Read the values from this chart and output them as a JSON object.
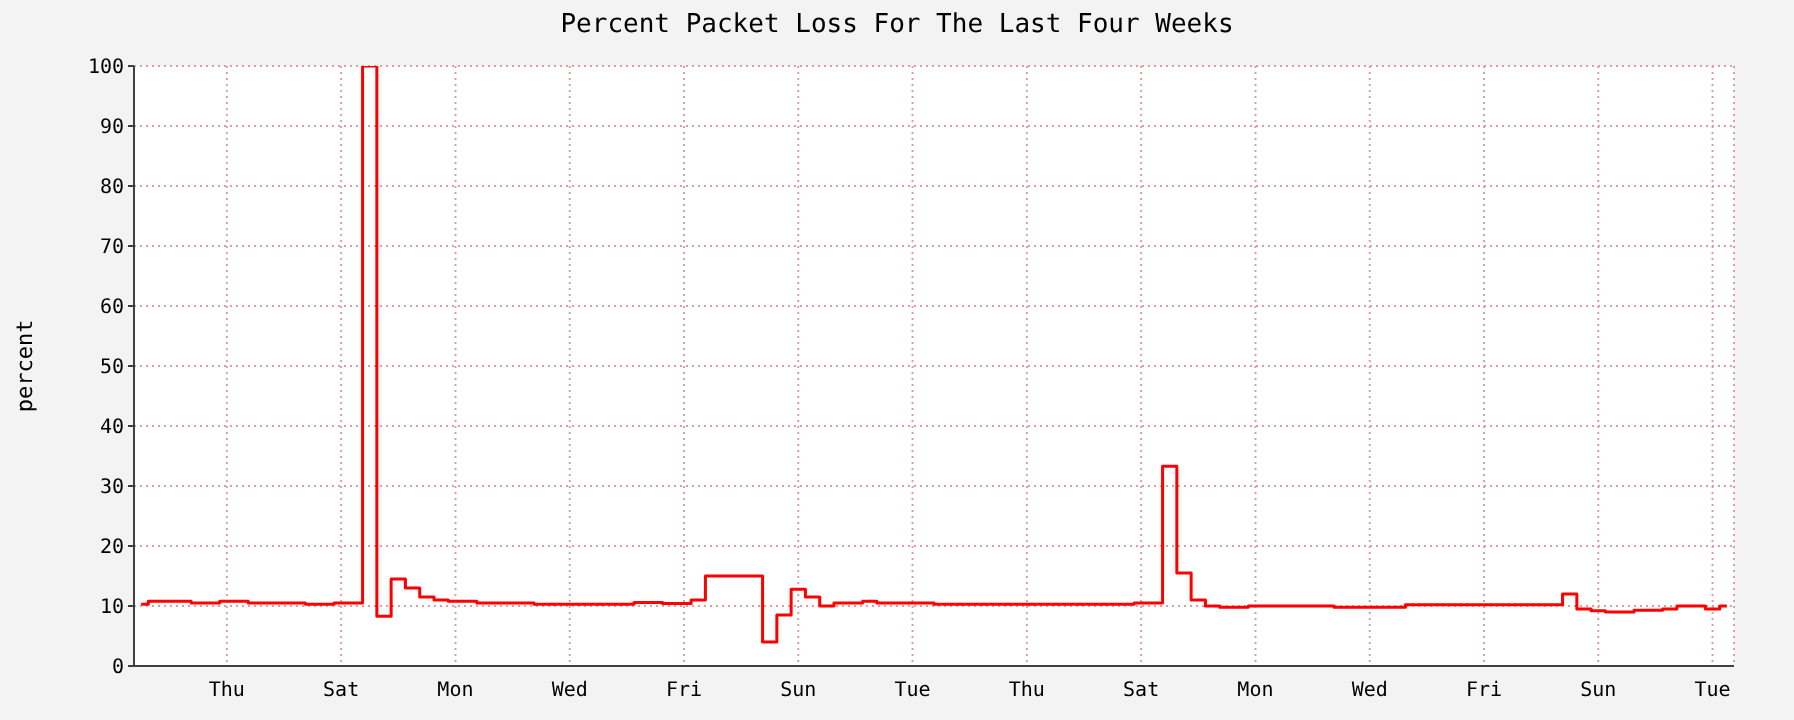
{
  "chart_data": {
    "type": "step",
    "title": "Percent Packet Loss For The Last Four Weeks",
    "ylabel": "percent",
    "categories": [
      null,
      null,
      null,
      null,
      null,
      null,
      "Thu",
      null,
      null,
      null,
      null,
      null,
      null,
      null,
      "Sat",
      null,
      null,
      null,
      null,
      null,
      null,
      null,
      "Mon",
      null,
      null,
      null,
      null,
      null,
      null,
      null,
      "Wed",
      null,
      null,
      null,
      null,
      null,
      null,
      null,
      "Fri",
      null,
      null,
      null,
      null,
      null,
      null,
      null,
      "Sun",
      null,
      null,
      null,
      null,
      null,
      null,
      null,
      "Tue",
      null,
      null,
      null,
      null,
      null,
      null,
      null,
      "Thu",
      null,
      null,
      null,
      null,
      null,
      null,
      null,
      "Sat",
      null,
      null,
      null,
      null,
      null,
      null,
      null,
      "Mon",
      null,
      null,
      null,
      null,
      null,
      null,
      null,
      "Wed",
      null,
      null,
      null,
      null,
      null,
      null,
      null,
      "Fri",
      null,
      null,
      null,
      null,
      null,
      null,
      null,
      "Sun",
      null,
      null,
      null,
      null,
      null,
      null,
      null,
      "Tue",
      null
    ],
    "series": [
      {
        "color": "#ff0000",
        "values": [
          10.3,
          10.8,
          10.8,
          10.8,
          10.5,
          10.5,
          10.8,
          10.8,
          10.5,
          10.5,
          10.5,
          10.5,
          10.3,
          10.3,
          10.5,
          10.5,
          100,
          8.3,
          14.5,
          13,
          11.5,
          11,
          10.8,
          10.8,
          10.5,
          10.5,
          10.5,
          10.5,
          10.3,
          10.3,
          10.3,
          10.3,
          10.3,
          10.3,
          10.3,
          10.6,
          10.6,
          10.4,
          10.4,
          11,
          15,
          15,
          15,
          15,
          4,
          8.5,
          12.8,
          11.5,
          10,
          10.5,
          10.5,
          10.8,
          10.5,
          10.5,
          10.5,
          10.5,
          10.3,
          10.3,
          10.3,
          10.3,
          10.3,
          10.3,
          10.3,
          10.3,
          10.3,
          10.3,
          10.3,
          10.3,
          10.3,
          10.3,
          10.5,
          10.5,
          33.3,
          15.5,
          11,
          10,
          9.8,
          9.8,
          10,
          10,
          10,
          10,
          10,
          10,
          9.8,
          9.8,
          9.8,
          9.8,
          9.8,
          10.2,
          10.2,
          10.2,
          10.2,
          10.2,
          10.2,
          10.2,
          10.2,
          10.2,
          10.2,
          10.2,
          12,
          9.5,
          9.2,
          9,
          9,
          9.3,
          9.3,
          9.5,
          10,
          10,
          9.5,
          10
        ]
      }
    ],
    "ylim": [
      0,
      100
    ],
    "yticks": [
      0,
      10,
      20,
      30,
      40,
      50,
      60,
      70,
      80,
      90,
      100
    ],
    "grid": true
  }
}
